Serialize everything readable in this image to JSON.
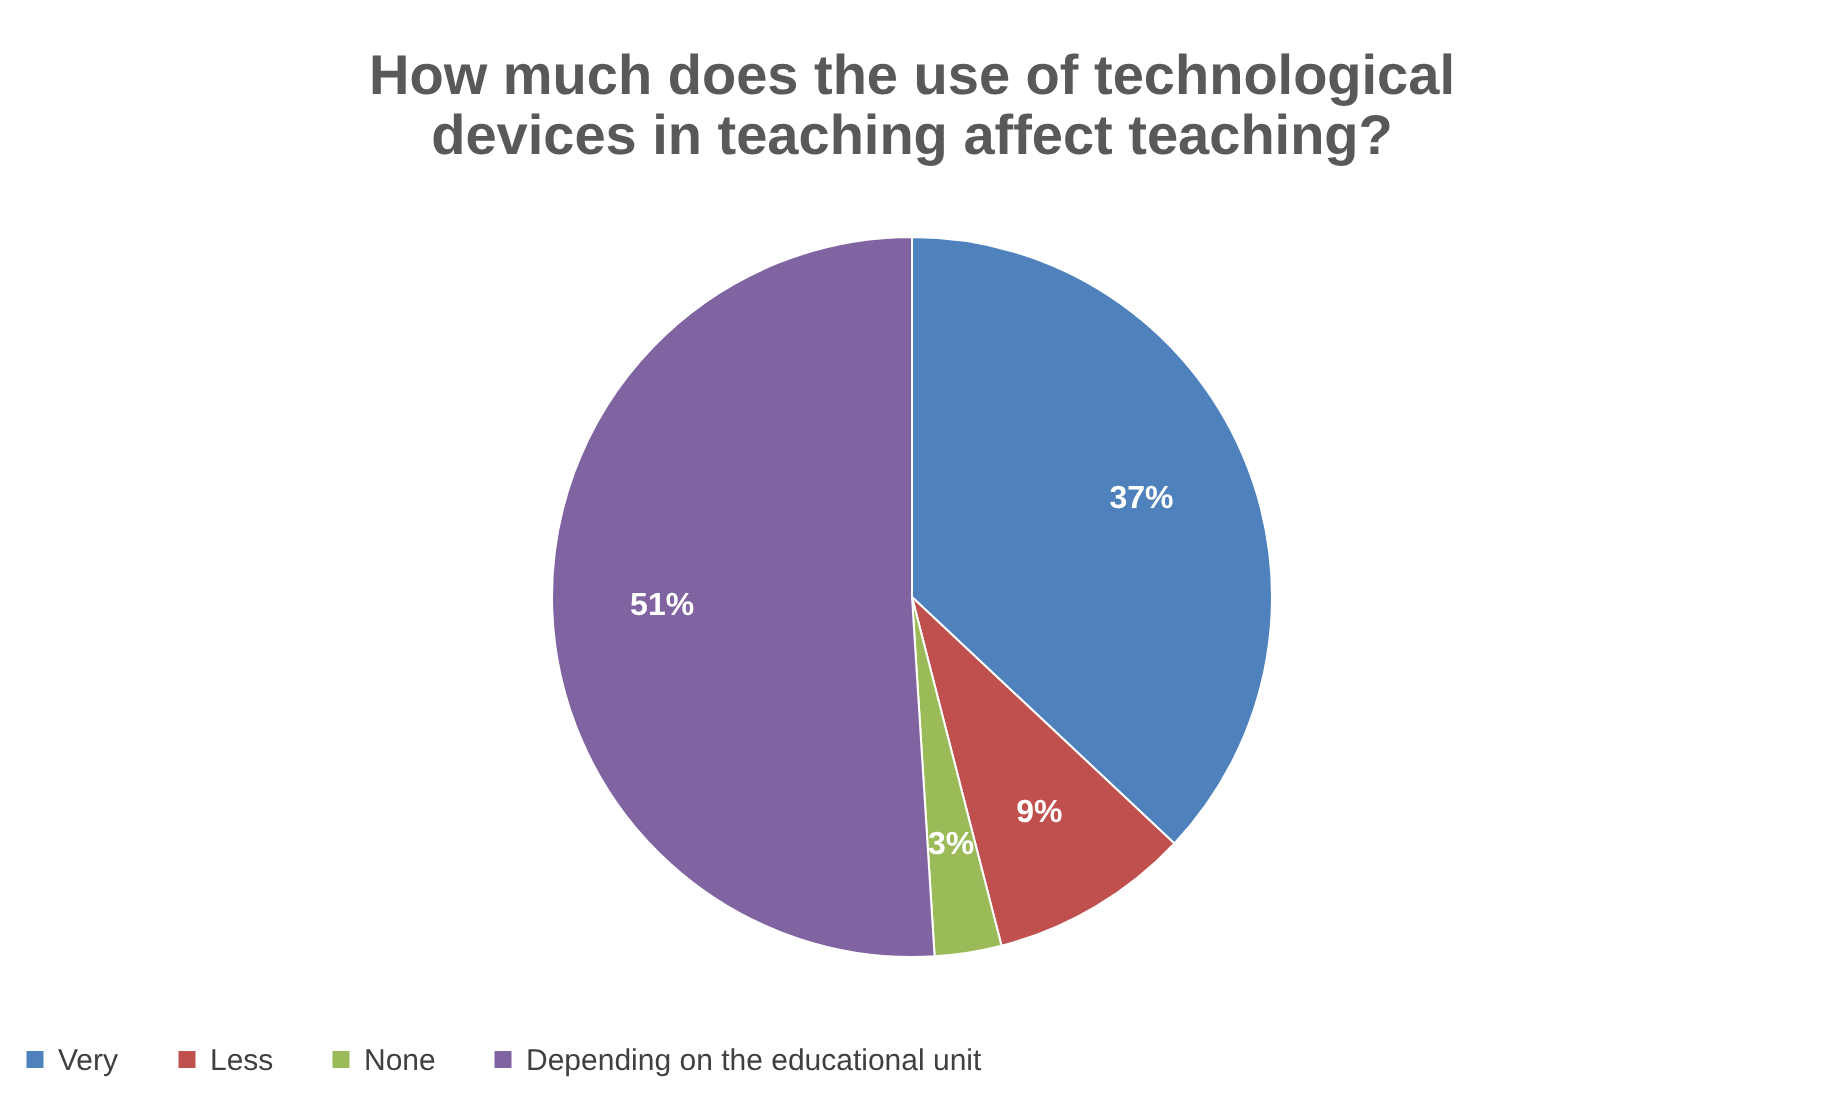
{
  "chart_data": {
    "type": "pie",
    "title": "How much does the use of technological devices in teaching affect teaching?",
    "categories": [
      "Very",
      "Less",
      "None",
      "Depending on the educational unit"
    ],
    "values": [
      37,
      9,
      3,
      51
    ],
    "colors": [
      "#4f81bd",
      "#c0504d",
      "#9bbb59",
      "#8064a2"
    ],
    "value_labels": [
      "37%",
      "9%",
      "3%",
      "51%"
    ],
    "legend": "bottom"
  }
}
